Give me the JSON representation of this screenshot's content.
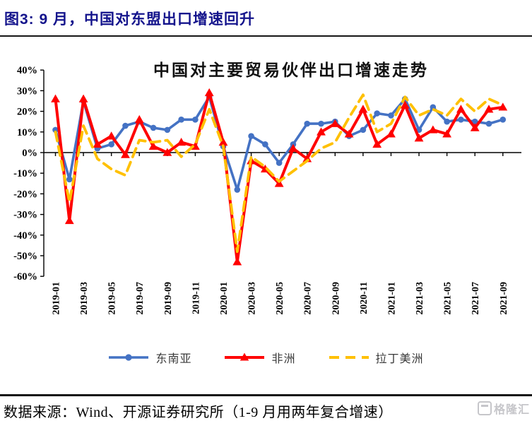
{
  "header": {
    "title": "图3:  9 月，中国对东盟出口增速回升"
  },
  "chart_data": {
    "type": "line",
    "title": "中国对主要贸易伙伴出口增速走势",
    "xlabel": "",
    "ylabel": "",
    "ylim": [
      -60,
      40
    ],
    "ytick_step": 10,
    "ytick_suffix": "%",
    "grid": false,
    "legend_position": "bottom",
    "x_label_every": 2,
    "x": [
      "2019-01",
      "2019-02",
      "2019-03",
      "2019-04",
      "2019-05",
      "2019-06",
      "2019-07",
      "2019-08",
      "2019-09",
      "2019-10",
      "2019-11",
      "2019-12",
      "2020-01",
      "2020-02",
      "2020-03",
      "2020-04",
      "2020-05",
      "2020-06",
      "2020-07",
      "2020-08",
      "2020-09",
      "2020-10",
      "2020-11",
      "2020-12",
      "2021-01",
      "2021-02",
      "2021-03",
      "2021-04",
      "2021-05",
      "2021-06",
      "2021-07",
      "2021-08",
      "2021-09"
    ],
    "series": [
      {
        "id": "southeast-asia",
        "name": "东南亚",
        "color": "#4472C4",
        "line": "solid",
        "marker": "circle",
        "values": [
          11,
          -13,
          25,
          2,
          4,
          13,
          15,
          12,
          11,
          16,
          16,
          27,
          3,
          -18,
          8,
          4,
          -5,
          4,
          14,
          14,
          15,
          8,
          11,
          19,
          18,
          26,
          11,
          22,
          15,
          16,
          15,
          14,
          16
        ]
      },
      {
        "id": "africa",
        "name": "非洲",
        "color": "#FF0000",
        "line": "solid",
        "marker": "triangle",
        "values": [
          26,
          -33,
          26,
          4,
          8,
          -1,
          16,
          3,
          0,
          5,
          3,
          29,
          5,
          -53,
          -4,
          -8,
          -15,
          2,
          -3,
          10,
          14,
          9,
          21,
          4,
          9,
          23,
          7,
          11,
          9,
          21,
          12,
          21,
          22
        ]
      },
      {
        "id": "latin-america",
        "name": "拉丁美洲",
        "color": "#FFC000",
        "line": "dashed",
        "marker": "none",
        "values": [
          10,
          -24,
          13,
          -3,
          -8,
          -11,
          6,
          5,
          6,
          -2,
          4,
          21,
          3,
          -48,
          -2,
          -7,
          -14,
          -9,
          -4,
          2,
          5,
          17,
          28,
          10,
          14,
          27,
          18,
          21,
          18,
          26,
          20,
          26,
          23
        ]
      }
    ]
  },
  "footer": {
    "source": "数据来源：Wind、开源证券研究所（1-9 月用两年复合增速）"
  },
  "watermark": {
    "text": "格隆汇"
  }
}
